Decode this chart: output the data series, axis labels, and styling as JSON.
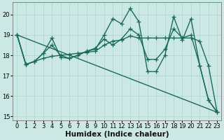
{
  "xlabel": "Humidex (Indice chaleur)",
  "background_color": "#cce8e4",
  "grid_color": "#b0d8d4",
  "line_color": "#1a6b5a",
  "xlim": [
    -0.5,
    23.5
  ],
  "ylim": [
    14.8,
    20.6
  ],
  "yticks": [
    15,
    16,
    17,
    18,
    19,
    20
  ],
  "xticks": [
    0,
    1,
    2,
    3,
    4,
    5,
    6,
    7,
    8,
    9,
    10,
    11,
    12,
    13,
    14,
    15,
    16,
    17,
    18,
    19,
    20,
    21,
    22,
    23
  ],
  "lines": [
    {
      "x": [
        0,
        1,
        2,
        3,
        4,
        5,
        6,
        7,
        8,
        9,
        10,
        11,
        12,
        13,
        14,
        15,
        16,
        17,
        18,
        19,
        20,
        21,
        22,
        23
      ],
      "y": [
        19.0,
        17.55,
        17.7,
        18.1,
        18.85,
        17.9,
        17.85,
        18.0,
        18.2,
        18.3,
        19.0,
        19.8,
        19.55,
        20.3,
        19.65,
        17.2,
        17.2,
        18.0,
        19.9,
        18.75,
        19.8,
        17.5,
        15.8,
        15.2
      ]
    },
    {
      "x": [
        0,
        1,
        2,
        3,
        4,
        5,
        6,
        7,
        8,
        9,
        10,
        11,
        12,
        13,
        14,
        15,
        16,
        17,
        18,
        19,
        20,
        21,
        22,
        23
      ],
      "y": [
        19.0,
        17.55,
        17.7,
        17.85,
        17.95,
        18.0,
        18.05,
        18.1,
        18.15,
        18.2,
        18.5,
        18.7,
        18.75,
        18.95,
        18.85,
        18.85,
        18.85,
        18.85,
        18.85,
        18.85,
        18.85,
        18.7,
        17.5,
        15.2
      ]
    },
    {
      "x": [
        0,
        1,
        2,
        3,
        4,
        5,
        6,
        7,
        8,
        9,
        10,
        11,
        12,
        13,
        14,
        15,
        16,
        17,
        18,
        19,
        20,
        21,
        22,
        23
      ],
      "y": [
        19.0,
        17.55,
        17.7,
        18.1,
        18.5,
        18.0,
        17.85,
        18.0,
        18.2,
        18.35,
        18.8,
        18.5,
        18.8,
        19.3,
        19.0,
        17.8,
        17.8,
        18.3,
        19.3,
        18.85,
        19.0,
        17.5,
        15.8,
        15.2
      ]
    },
    {
      "x": [
        0,
        23
      ],
      "y": [
        19.0,
        15.2
      ]
    }
  ],
  "marker": "+",
  "marker_size": 4,
  "line_width": 1.0,
  "tick_fontsize": 6.0,
  "xlabel_fontsize": 7.5
}
